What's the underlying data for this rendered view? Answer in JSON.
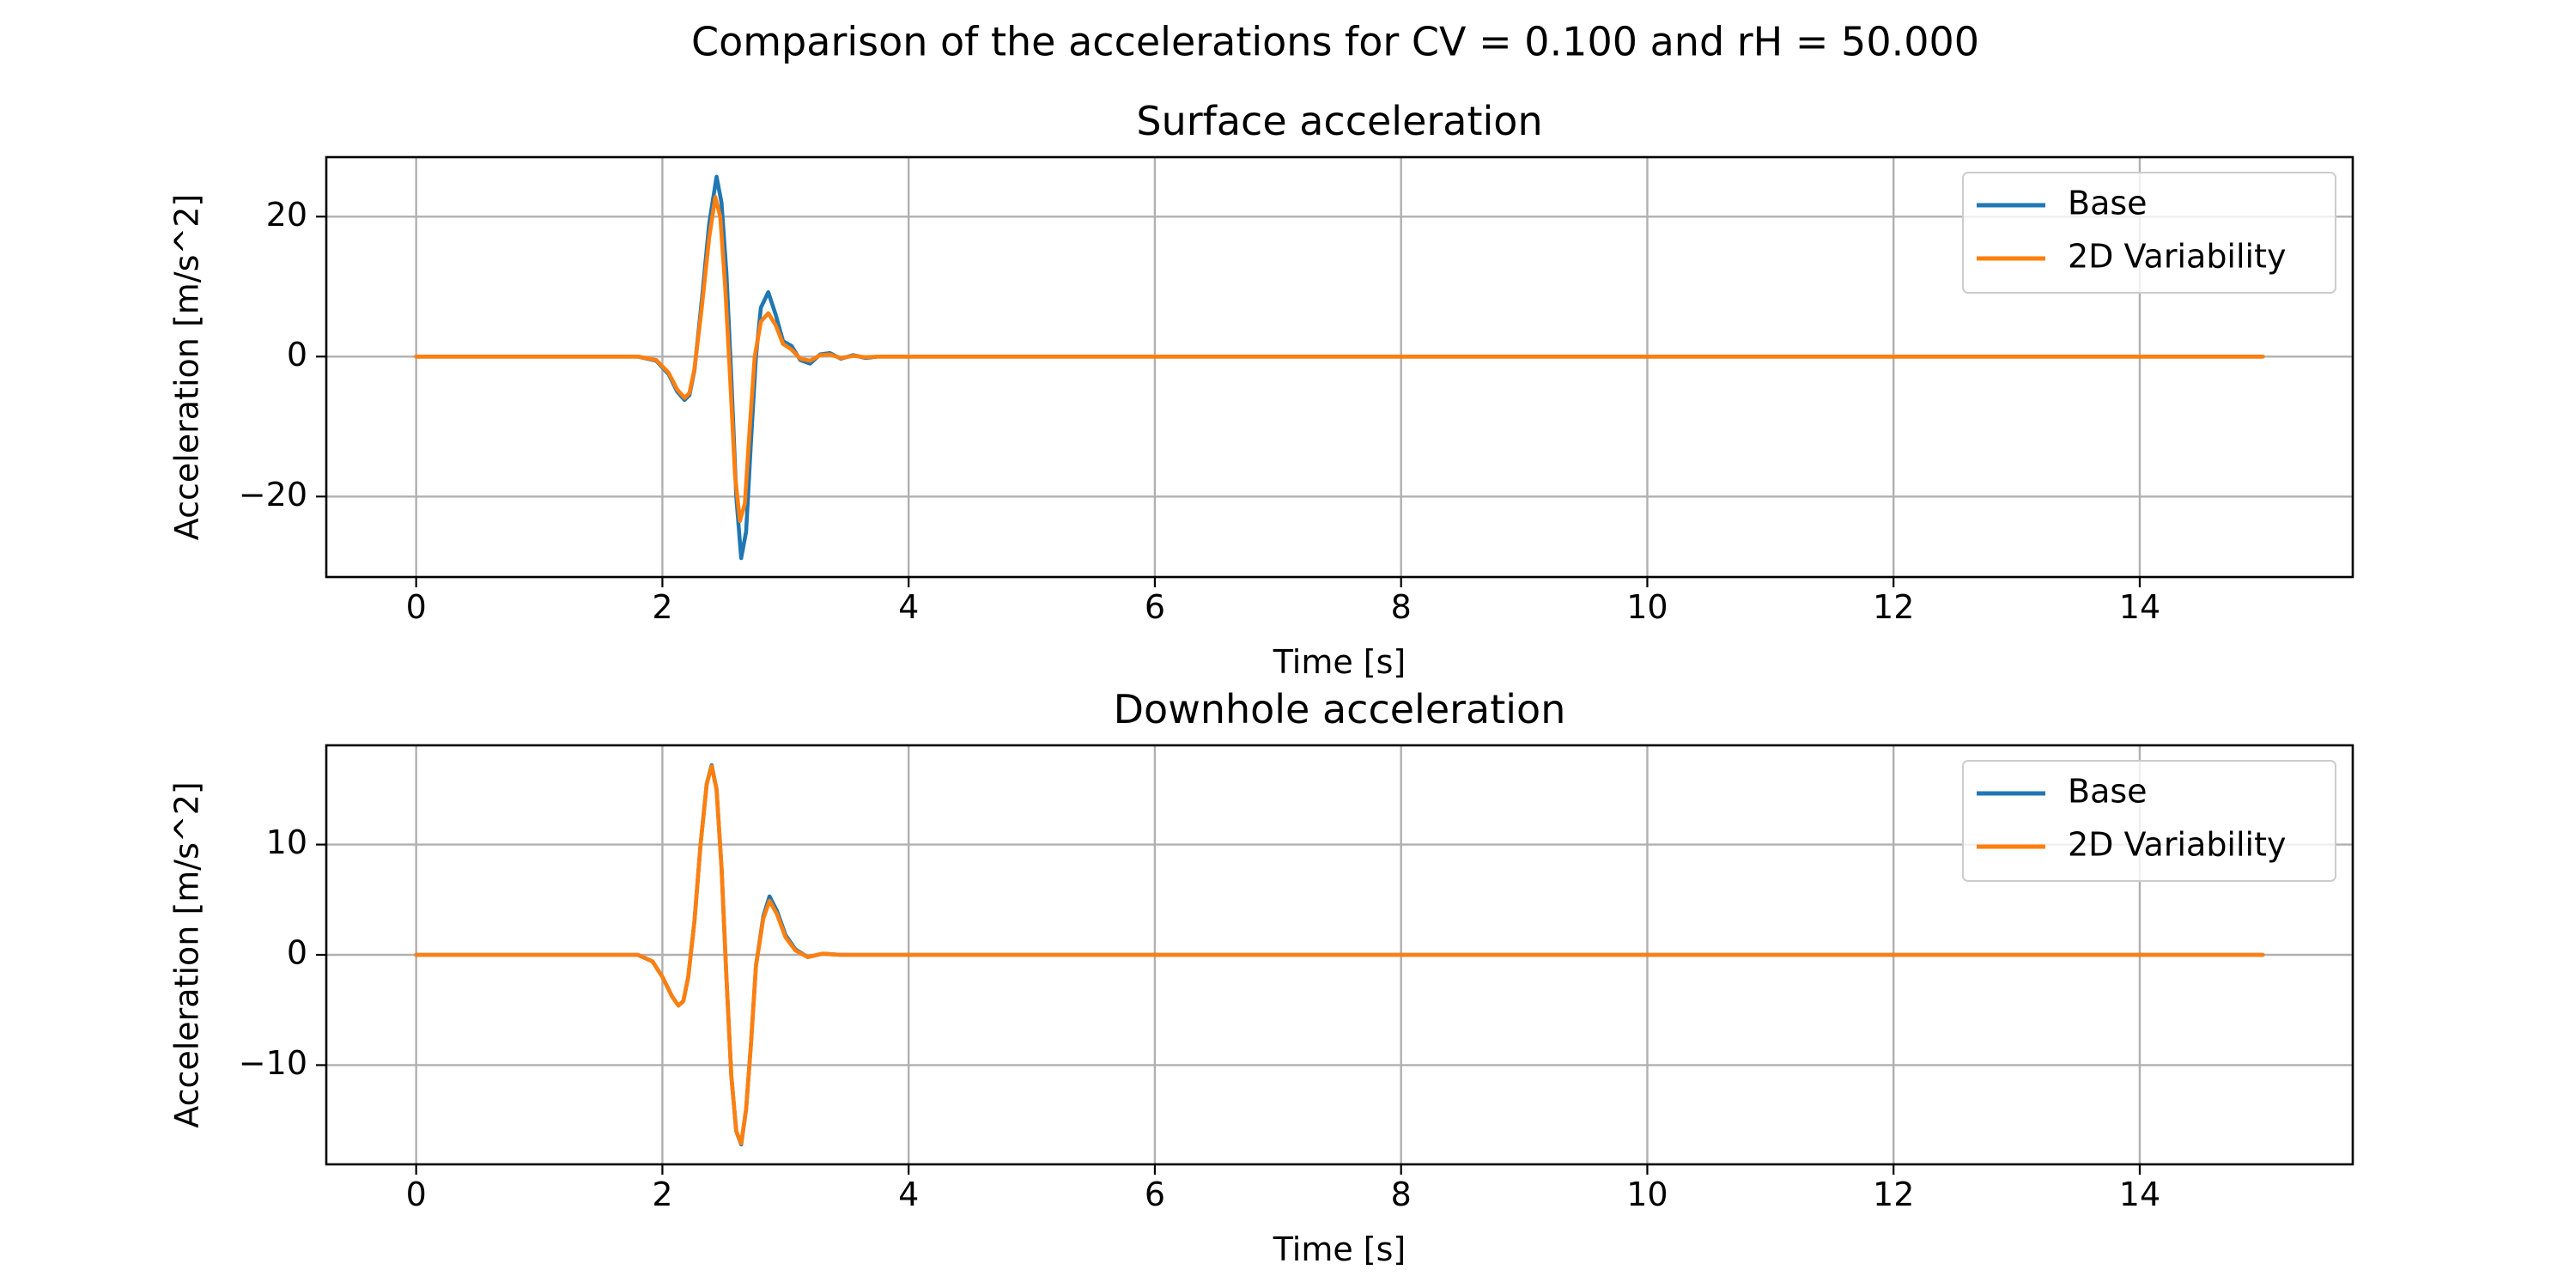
{
  "figure": {
    "suptitle": "Comparison of the accelerations for CV = 0.100 and rH = 50.000"
  },
  "colors": {
    "base": "#1f77b4",
    "variability": "#ff7f0e",
    "grid": "#b0b0b0"
  },
  "chart_data": [
    {
      "type": "line",
      "title": "Surface acceleration",
      "xlabel": "Time [s]",
      "ylabel": "Acceleration [m/s^2]",
      "xlim": [
        -0.73,
        15.73
      ],
      "ylim": [
        -31.5,
        28.5
      ],
      "xticks": [
        0,
        2,
        4,
        6,
        8,
        10,
        12,
        14
      ],
      "xtick_labels": [
        "0",
        "2",
        "4",
        "6",
        "8",
        "10",
        "12",
        "14"
      ],
      "yticks": [
        -20,
        0,
        20
      ],
      "ytick_labels": [
        "−20",
        "0",
        "20"
      ],
      "grid": true,
      "legend": "upper right",
      "series": [
        {
          "name": "Base",
          "color": "#1f77b4",
          "x": [
            0,
            1.8,
            1.95,
            2.05,
            2.12,
            2.18,
            2.22,
            2.26,
            2.32,
            2.38,
            2.44,
            2.48,
            2.52,
            2.56,
            2.6,
            2.64,
            2.68,
            2.72,
            2.76,
            2.8,
            2.86,
            2.92,
            2.98,
            3.05,
            3.12,
            3.2,
            3.28,
            3.36,
            3.45,
            3.55,
            3.65,
            3.75,
            3.9,
            15
          ],
          "y": [
            0,
            0,
            -0.6,
            -2.5,
            -5,
            -6.2,
            -5.5,
            -2,
            8,
            19,
            25.7,
            22,
            12,
            -3,
            -20,
            -28.8,
            -25,
            -12,
            0,
            7,
            9.2,
            6,
            2.2,
            1.5,
            -0.5,
            -1,
            0.3,
            0.5,
            -0.3,
            0.2,
            -0.2,
            0,
            0,
            0
          ]
        },
        {
          "name": "2D Variability",
          "color": "#ff7f0e",
          "x": [
            0,
            1.8,
            1.95,
            2.05,
            2.12,
            2.18,
            2.22,
            2.26,
            2.32,
            2.38,
            2.43,
            2.47,
            2.51,
            2.55,
            2.59,
            2.63,
            2.67,
            2.71,
            2.75,
            2.8,
            2.86,
            2.92,
            2.98,
            3.05,
            3.12,
            3.2,
            3.28,
            3.36,
            3.45,
            3.55,
            3.65,
            3.75,
            3.9,
            15
          ],
          "y": [
            0,
            0,
            -0.5,
            -2.3,
            -4.7,
            -5.9,
            -5.2,
            -1.8,
            7,
            17,
            22.8,
            20,
            10,
            -3,
            -17,
            -23.5,
            -21,
            -10,
            0,
            5,
            6.2,
            4.5,
            1.8,
            1,
            -0.3,
            -0.6,
            0.2,
            0.3,
            -0.2,
            0.1,
            -0.1,
            0,
            0,
            0
          ]
        }
      ]
    },
    {
      "type": "line",
      "title": "Downhole acceleration",
      "xlabel": "Time [s]",
      "ylabel": "Acceleration [m/s^2]",
      "xlim": [
        -0.73,
        15.73
      ],
      "ylim": [
        -19,
        19
      ],
      "xticks": [
        0,
        2,
        4,
        6,
        8,
        10,
        12,
        14
      ],
      "xtick_labels": [
        "0",
        "2",
        "4",
        "6",
        "8",
        "10",
        "12",
        "14"
      ],
      "yticks": [
        -10,
        0,
        10
      ],
      "ytick_labels": [
        "−10",
        "0",
        "10"
      ],
      "grid": true,
      "legend": "upper right",
      "series": [
        {
          "name": "Base",
          "color": "#1f77b4",
          "x": [
            0,
            1.8,
            1.92,
            2.0,
            2.08,
            2.13,
            2.17,
            2.21,
            2.26,
            2.31,
            2.36,
            2.4,
            2.44,
            2.48,
            2.52,
            2.56,
            2.6,
            2.64,
            2.68,
            2.72,
            2.76,
            2.82,
            2.87,
            2.93,
            3.0,
            3.08,
            3.18,
            3.3,
            3.45,
            3.6,
            15
          ],
          "y": [
            0,
            0,
            -0.6,
            -2,
            -3.8,
            -4.6,
            -4.2,
            -2,
            3,
            10,
            15.5,
            17.2,
            15,
            8,
            -2,
            -11,
            -16,
            -17.2,
            -14,
            -8,
            -1,
            3.5,
            5.3,
            4,
            1.8,
            0.5,
            -0.2,
            0.1,
            0,
            0,
            0
          ]
        },
        {
          "name": "2D Variability",
          "color": "#ff7f0e",
          "x": [
            0,
            1.8,
            1.92,
            2.0,
            2.08,
            2.13,
            2.17,
            2.21,
            2.26,
            2.31,
            2.36,
            2.4,
            2.44,
            2.48,
            2.52,
            2.56,
            2.6,
            2.64,
            2.68,
            2.72,
            2.76,
            2.82,
            2.87,
            2.93,
            3.0,
            3.08,
            3.18,
            3.3,
            3.45,
            3.6,
            15
          ],
          "y": [
            0,
            0,
            -0.6,
            -2,
            -3.8,
            -4.6,
            -4.2,
            -2,
            3,
            10,
            15.5,
            17.1,
            15,
            8,
            -2,
            -11,
            -16,
            -17.1,
            -14,
            -8,
            -1,
            3.3,
            4.9,
            3.7,
            1.6,
            0.4,
            -0.2,
            0.1,
            0,
            0,
            0
          ]
        }
      ]
    }
  ]
}
